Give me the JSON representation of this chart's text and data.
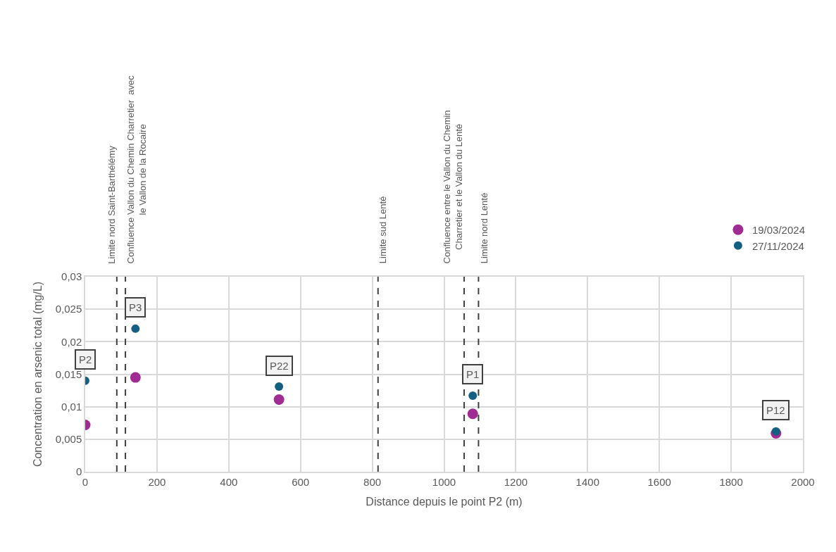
{
  "chart_data": {
    "type": "scatter",
    "xlabel": "Distance depuis le point P2 (m)",
    "ylabel": "Concentration en arsenic total (mg/L)",
    "series": [
      {
        "name": "19/03/2024",
        "color": "#a02b93",
        "x": [
          0,
          140,
          540,
          1080,
          1925
        ],
        "values": [
          0.0072,
          0.0145,
          0.0111,
          0.0089,
          0.0059
        ]
      },
      {
        "name": "27/11/2024",
        "color": "#156082",
        "x": [
          0,
          140,
          540,
          1080,
          1925
        ],
        "values": [
          0.014,
          0.022,
          0.0131,
          0.0117,
          0.0062
        ]
      }
    ],
    "xlim": [
      0,
      2000
    ],
    "xticks": [
      0,
      200,
      400,
      600,
      800,
      1000,
      1200,
      1400,
      1600,
      1800,
      2000
    ],
    "ylim": [
      0,
      0.03
    ],
    "yticks": [
      0,
      {
        "value": 0.005,
        "label": "0,005"
      },
      {
        "value": 0.01,
        "label": "0,01"
      },
      {
        "value": 0.015,
        "label": "0,015"
      },
      {
        "value": 0.02,
        "label": "0,02"
      },
      {
        "value": 0.025,
        "label": "0,025"
      },
      {
        "value": 0.03,
        "label": "0,03"
      }
    ],
    "ref_lines": [
      {
        "axis": "x",
        "value": 88,
        "label": "Limite nord Saint-Barthélémy",
        "color": "#404040",
        "line_style": "dashed"
      },
      {
        "axis": "x",
        "value": 112,
        "label": "Confluence Vallon du Chemin Charretier  avec\nle Vallon de la Rocaire",
        "color": "#404040",
        "line_style": "dashed"
      },
      {
        "axis": "x",
        "value": 816,
        "label": "Limite sud Lenté",
        "color": "#404040",
        "line_style": "dashed"
      },
      {
        "axis": "x",
        "value": 1056,
        "label": "Confluence entre le Vallon du Chemin\nCharretier et le Vallon du Lenté",
        "color": "#404040",
        "line_style": "dashed"
      },
      {
        "axis": "x",
        "value": 1096,
        "label": "Limite nord Lenté",
        "color": "#404040",
        "line_style": "dashed"
      }
    ],
    "annotations": [
      {
        "text": "P2",
        "x": 0,
        "y": 0.014
      },
      {
        "text": "P3",
        "x": 140,
        "y": 0.022
      },
      {
        "text": "P22",
        "x": 540,
        "y": 0.0131
      },
      {
        "text": "P1",
        "x": 1080,
        "y": 0.0117
      },
      {
        "text": "P12",
        "x": 1925,
        "y": 0.0062
      }
    ],
    "grid": true,
    "legend": "top right",
    "marker": "circle"
  }
}
